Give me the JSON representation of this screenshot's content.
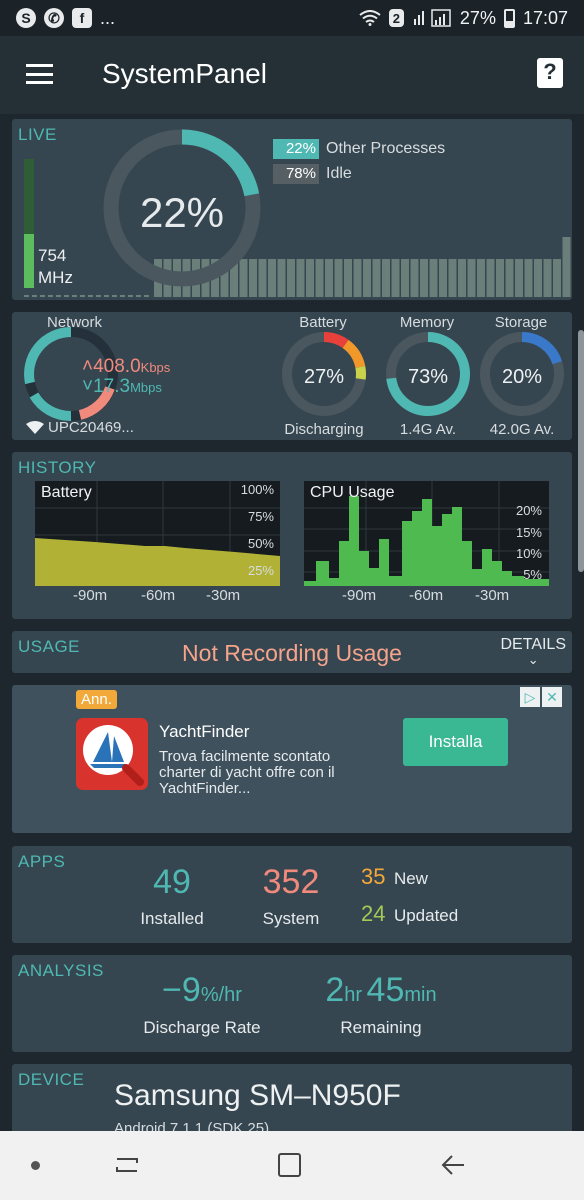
{
  "status_bar": {
    "left_icons": [
      "skype-icon",
      "whatsapp-icon",
      "facebook-icon"
    ],
    "more": "...",
    "sim_badge": "2",
    "battery_pct": "27%",
    "time": "17:07"
  },
  "app_bar": {
    "title": "SystemPanel"
  },
  "live": {
    "label": "LIVE",
    "cpu_pct": "22%",
    "mhz_value": "754",
    "mhz_unit": "MHz",
    "mhz_fraction": 0.42,
    "legend": [
      {
        "pct": "22%",
        "label": "Other Processes",
        "color": "#4fb8b2"
      },
      {
        "pct": "78%",
        "label": "Idle",
        "color": "#565f64"
      }
    ]
  },
  "network": {
    "label": "Network",
    "up": "408.0",
    "up_unit": "Kbps",
    "down": "17.3",
    "down_unit": "Mbps",
    "ssid": "UPC20469..."
  },
  "battery": {
    "label": "Battery",
    "value": "27%",
    "sub": "Discharging",
    "fraction": 0.27
  },
  "memory": {
    "label": "Memory",
    "value": "73%",
    "sub": "1.4G Av.",
    "fraction": 0.73
  },
  "storage": {
    "label": "Storage",
    "value": "20%",
    "sub": "42.0G Av.",
    "fraction": 0.2
  },
  "history": {
    "label": "HISTORY",
    "battery_chart": {
      "title": "Battery",
      "y_ticks": [
        "100%",
        "75%",
        "50%",
        "25%"
      ],
      "x_ticks": [
        "-90m",
        "-60m",
        "-30m"
      ]
    },
    "cpu_chart": {
      "title": "CPU Usage",
      "y_ticks": [
        "20%",
        "15%",
        "10%",
        "5%"
      ],
      "x_ticks": [
        "-90m",
        "-60m",
        "-30m"
      ]
    }
  },
  "usage": {
    "label": "USAGE",
    "status": "Not Recording Usage",
    "details": "DETAILS"
  },
  "ad": {
    "badge": "Ann.",
    "name": "YachtFinder",
    "description": "Trova facilmente scontato charter di yacht offre con il YachtFinder...",
    "button": "Installa"
  },
  "apps": {
    "label": "APPS",
    "installed": "49",
    "installed_label": "Installed",
    "system": "352",
    "system_label": "System",
    "new_count": "35",
    "new_label": "New",
    "updated_count": "24",
    "updated_label": "Updated"
  },
  "analysis": {
    "label": "ANALYSIS",
    "rate_value": "−9",
    "rate_unit": "%/hr",
    "rate_label": "Discharge Rate",
    "hours": "2",
    "hours_unit": "hr",
    "minutes": "45",
    "minutes_unit": "min",
    "remaining_label": "Remaining"
  },
  "device": {
    "label": "DEVICE",
    "name": "Samsung SM–N950F",
    "os": "Android 7.1.1 (SDK 25)"
  },
  "colors": {
    "accent": "#4fb8b2",
    "upload": "#f08a7c",
    "battery_history": "#b1b136",
    "cpu_history": "#4fba4f",
    "new": "#f2a93a",
    "updated": "#a5c957",
    "install": "#3ab793"
  }
}
